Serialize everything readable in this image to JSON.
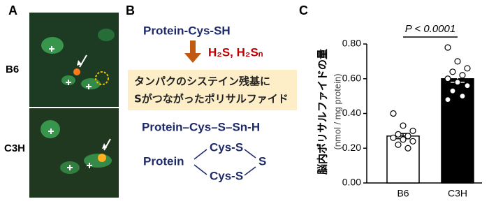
{
  "panel_a": {
    "label": "A",
    "rows": [
      "B6",
      "C3H"
    ]
  },
  "panel_b": {
    "label": "B",
    "reactant": "Protein-Cys-SH",
    "reagent": "H₂S, H₂Sₙ",
    "box": [
      "タンパクのシステイン残基に",
      "Sがつながったポリサルファイド"
    ],
    "product": "Protein–Cys–S–Sn-H",
    "ring": {
      "protein": "Protein",
      "top": "Cys-S",
      "bottom": "Cys-S",
      "bridge": "S"
    }
  },
  "chart_data": {
    "type": "bar",
    "panel_label": "C",
    "ylabel": "脳内ポリサルファイドの量",
    "ylabel_unit": "(nmol / mg protein)",
    "annotation": "P < 0.0001",
    "categories": [
      "B6",
      "C3H"
    ],
    "values": [
      0.27,
      0.6
    ],
    "errors": [
      0.015,
      0.02
    ],
    "colors": [
      "#ffffff",
      "#000000"
    ],
    "points": [
      [
        0.4,
        0.33,
        0.3,
        0.28,
        0.27,
        0.26,
        0.25,
        0.24,
        0.22,
        0.2
      ],
      [
        0.78,
        0.7,
        0.66,
        0.64,
        0.62,
        0.6,
        0.58,
        0.56,
        0.53,
        0.5,
        0.48
      ]
    ],
    "ylim": [
      0,
      0.8
    ],
    "yticks": [
      {
        "value": 0,
        "label": "0.00"
      },
      {
        "value": 0.2,
        "label": "0.20"
      },
      {
        "value": 0.4,
        "label": "0.40"
      },
      {
        "value": 0.6,
        "label": "0.60"
      },
      {
        "value": 0.8,
        "label": "0.80"
      }
    ]
  }
}
